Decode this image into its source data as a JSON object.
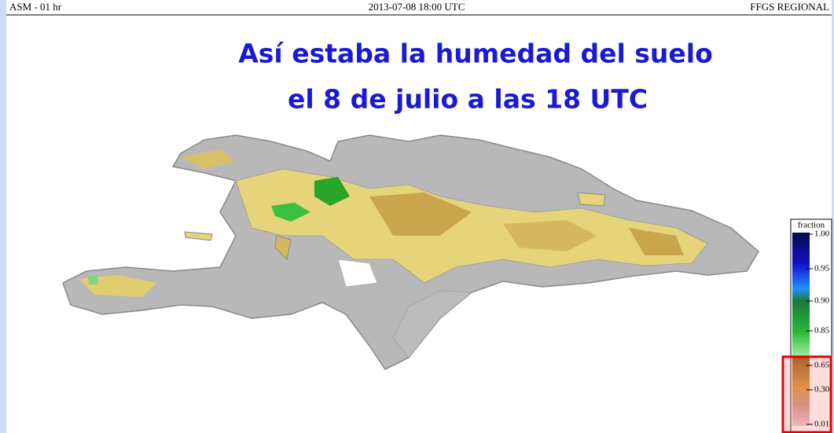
{
  "header": {
    "left": "ASM - 01 hr",
    "center": "2013-07-08 18:00 UTC",
    "right": "FFGS REGIONAL"
  },
  "title": {
    "line1": "Así estaba la humedad del suelo",
    "line2": "el 8 de julio a las 18 UTC"
  },
  "legend": {
    "title": "fraction",
    "ticks": [
      {
        "value": 1,
        "label": "1.00"
      },
      {
        "value": 0.95,
        "label": "0.95"
      },
      {
        "value": 0.9,
        "label": "0.90"
      },
      {
        "value": 0.85,
        "label": "0.85"
      },
      {
        "value": 0.65,
        "label": "0.65"
      },
      {
        "value": 0.3,
        "label": "0.30"
      },
      {
        "value": 0.01,
        "label": "0.01"
      }
    ]
  }
}
